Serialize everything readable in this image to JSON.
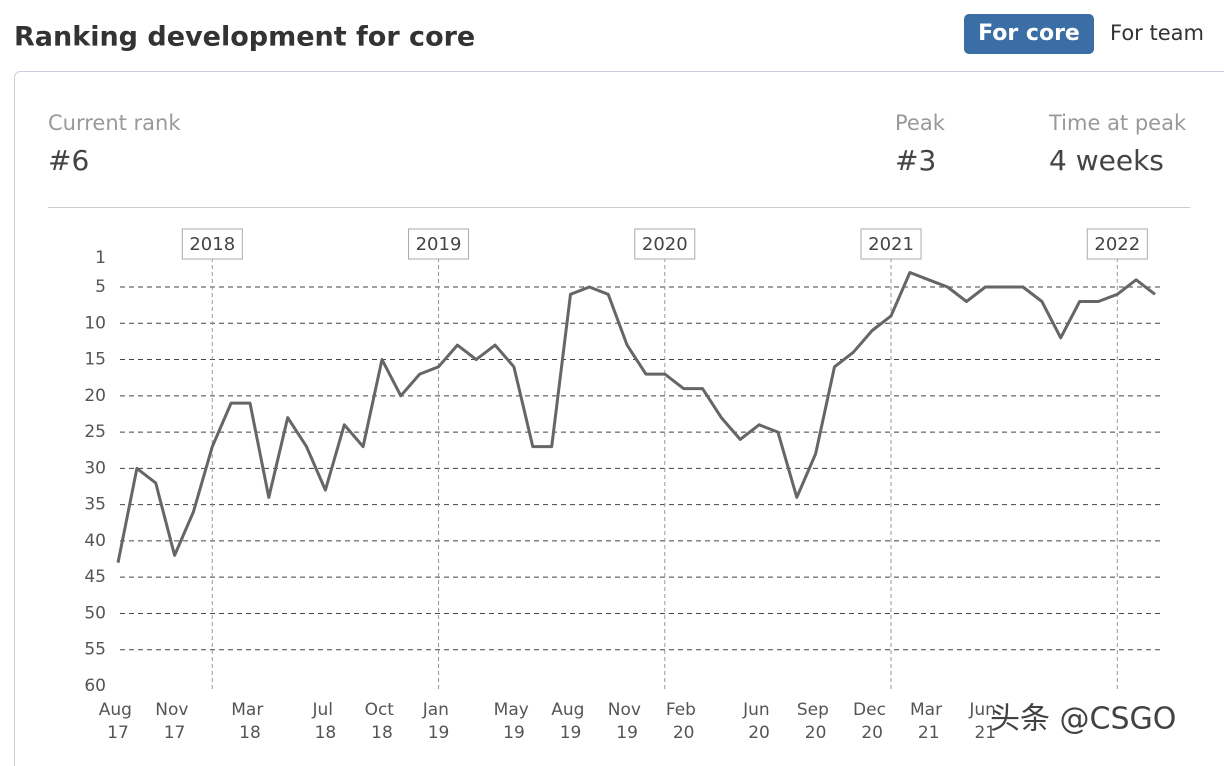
{
  "header": {
    "title": "Ranking development for core",
    "buttons": [
      "For core",
      "For team"
    ]
  },
  "stats": [
    {
      "label": "Current rank",
      "value": "#6"
    },
    {
      "label": "Peak",
      "value": "#3"
    },
    {
      "label": "Time at peak",
      "value": "4 weeks"
    }
  ],
  "chart_data": {
    "type": "line",
    "color": "#666666",
    "x": [
      "2017-08",
      "2017-09",
      "2017-10",
      "2017-11",
      "2017-12",
      "2018-01",
      "2018-02",
      "2018-03",
      "2018-04",
      "2018-05",
      "2018-06",
      "2018-07",
      "2018-08",
      "2018-09",
      "2018-10",
      "2018-11",
      "2018-12",
      "2019-01",
      "2019-02",
      "2019-03",
      "2019-04",
      "2019-05",
      "2019-06",
      "2019-07",
      "2019-08",
      "2019-09",
      "2019-10",
      "2019-11",
      "2019-12",
      "2020-01",
      "2020-02",
      "2020-03",
      "2020-04",
      "2020-05",
      "2020-06",
      "2020-07",
      "2020-08",
      "2020-09",
      "2020-10",
      "2020-11",
      "2020-12",
      "2021-01",
      "2021-02",
      "2021-03",
      "2021-04",
      "2021-05",
      "2021-06",
      "2021-07",
      "2021-08",
      "2021-09",
      "2021-10",
      "2021-11",
      "2021-12",
      "2022-01",
      "2022-02",
      "2022-03"
    ],
    "values": [
      43,
      30,
      32,
      42,
      36,
      27,
      21,
      21,
      34,
      23,
      27,
      33,
      24,
      27,
      15,
      20,
      17,
      16,
      13,
      15,
      13,
      16,
      27,
      27,
      6,
      5,
      6,
      13,
      17,
      17,
      19,
      19,
      23,
      26,
      24,
      25,
      34,
      28,
      16,
      14,
      11,
      9,
      3,
      4,
      5,
      7,
      5,
      5,
      5,
      7,
      12,
      7,
      7,
      6,
      4,
      6
    ],
    "xlim": [
      "2017-08",
      "2022-03"
    ],
    "xticks": [
      {
        "value": "2017-08",
        "label": "Aug 17"
      },
      {
        "value": "2017-11",
        "label": "Nov 17"
      },
      {
        "value": "2018-03",
        "label": "Mar 18"
      },
      {
        "value": "2018-07",
        "label": "Jul 18"
      },
      {
        "value": "2018-10",
        "label": "Oct 18"
      },
      {
        "value": "2019-01",
        "label": "Jan 19"
      },
      {
        "value": "2019-05",
        "label": "May 19"
      },
      {
        "value": "2019-08",
        "label": "Aug 19"
      },
      {
        "value": "2019-11",
        "label": "Nov 19"
      },
      {
        "value": "2020-02",
        "label": "Feb 20"
      },
      {
        "value": "2020-06",
        "label": "Jun 20"
      },
      {
        "value": "2020-09",
        "label": "Sep 20"
      },
      {
        "value": "2020-12",
        "label": "Dec 20"
      },
      {
        "value": "2021-03",
        "label": "Mar 21"
      },
      {
        "value": "2021-06",
        "label": "Jun 21"
      }
    ],
    "year_markers": [
      {
        "value": "2018-01",
        "label": "2018"
      },
      {
        "value": "2019-01",
        "label": "2019"
      },
      {
        "value": "2020-01",
        "label": "2020"
      },
      {
        "value": "2021-01",
        "label": "2021"
      },
      {
        "value": "2022-01",
        "label": "2022"
      }
    ],
    "ylim": [
      60,
      1
    ],
    "yticks": [
      1,
      5,
      10,
      15,
      20,
      25,
      30,
      35,
      40,
      45,
      50,
      55,
      60
    ],
    "grid": true
  },
  "watermark": "头条 @CSGO"
}
